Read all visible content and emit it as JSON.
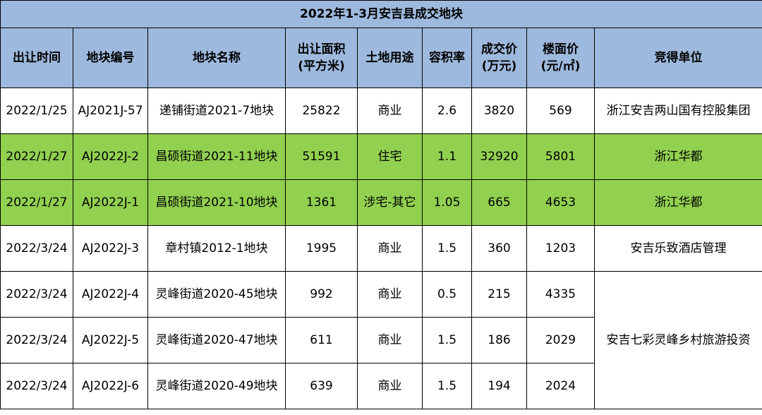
{
  "title": "2022年1-3月安吉县成交地块",
  "headers": [
    "出让时间",
    "地块编号",
    "地块名称",
    "出让面积\n(平方米)",
    "土地用途",
    "容积率",
    "成交价\n(万元)",
    "楼面价\n(元/㎡)",
    "竞得单位"
  ],
  "rows": [
    {
      "date": "2022/1/25",
      "code": "AJ2021J-57",
      "name": "递铺街道2021-7地块",
      "area": "25822",
      "use": "商业",
      "far": "2.6",
      "price": "3820",
      "floor_price": "569",
      "winner": "浙江安吉两山国有控股集团",
      "highlight": false
    },
    {
      "date": "2022/1/27",
      "code": "AJ2022J-2",
      "name": "昌硕街道2021-11地块",
      "area": "51591",
      "use": "住宅",
      "far": "1.1",
      "price": "32920",
      "floor_price": "5801",
      "winner": "浙江华都",
      "highlight": true
    },
    {
      "date": "2022/1/27",
      "code": "AJ2022J-1",
      "name": "昌硕街道2021-10地块",
      "area": "1361",
      "use": "涉宅-其它",
      "far": "1.05",
      "price": "665",
      "floor_price": "4653",
      "winner": "浙江华都",
      "highlight": true
    },
    {
      "date": "2022/3/24",
      "code": "AJ2022J-3",
      "name": "章村镇2012-1地块",
      "area": "1995",
      "use": "商业",
      "far": "1.5",
      "price": "360",
      "floor_price": "1203",
      "winner": "安吉乐致酒店管理",
      "highlight": false
    },
    {
      "date": "2022/3/24",
      "code": "AJ2022J-4",
      "name": "灵峰街道2020-45地块",
      "area": "992",
      "use": "商业",
      "far": "0.5",
      "price": "215",
      "floor_price": "4335",
      "winner": "安吉七彩灵峰乡村旅游投资",
      "highlight": false
    },
    {
      "date": "2022/3/24",
      "code": "AJ2022J-5",
      "name": "灵峰街道2020-47地块",
      "area": "611",
      "use": "商业",
      "far": "1.5",
      "price": "186",
      "floor_price": "2029",
      "winner": "安吉七彩灵峰乡村旅游投资",
      "highlight": false
    },
    {
      "date": "2022/3/24",
      "code": "AJ2022J-6",
      "name": "灵峰街道2020-49地块",
      "area": "639",
      "use": "商业",
      "far": "1.5",
      "price": "194",
      "floor_price": "2024",
      "winner": "安吉七彩灵峰乡村旅游投资",
      "highlight": false
    }
  ],
  "colors": {
    "header_bg": "#9db9dd",
    "highlight_bg": "#92d050"
  }
}
